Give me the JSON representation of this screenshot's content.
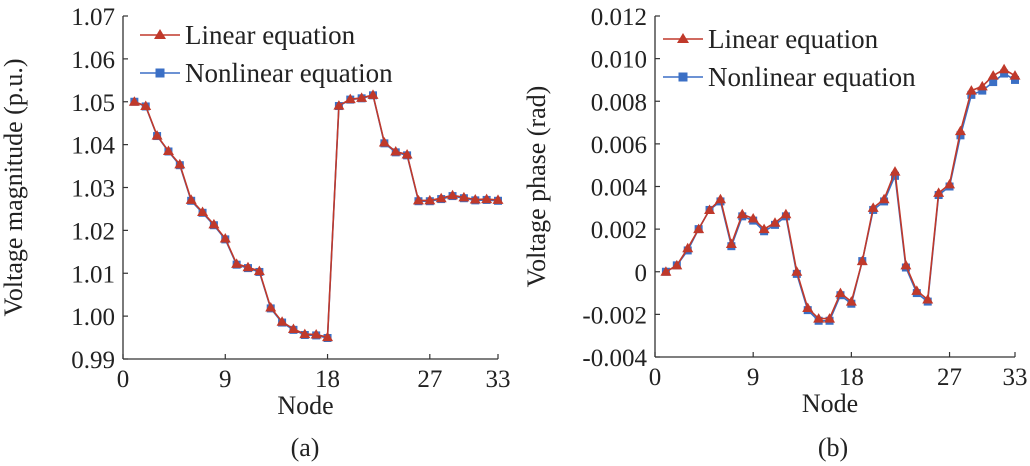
{
  "chart_data": [
    {
      "type": "line",
      "panel_label": "(a)",
      "xlabel": "Node",
      "ylabel": "Voltage  magnitude (p.u.)",
      "xlim": [
        0,
        33
      ],
      "xticks": [
        "0",
        "9",
        "18",
        "27",
        "33"
      ],
      "ylim": [
        0.99,
        1.07
      ],
      "yticks": [
        "0.99",
        "1.00",
        "1.01",
        "1.02",
        "1.03",
        "1.04",
        "1.05",
        "1.06",
        "1.07"
      ],
      "legend_position": "top-right",
      "grid": false,
      "x": [
        1,
        2,
        3,
        4,
        5,
        6,
        7,
        8,
        9,
        10,
        11,
        12,
        13,
        14,
        15,
        16,
        17,
        18,
        19,
        20,
        21,
        22,
        23,
        24,
        25,
        26,
        27,
        28,
        29,
        30,
        31,
        32,
        33
      ],
      "series": [
        {
          "name": "Linear equation",
          "marker": "triangle",
          "color": "#c0392b",
          "values": [
            1.05,
            1.049,
            1.0421,
            1.0385,
            1.0354,
            1.0271,
            1.0243,
            1.0214,
            1.0181,
            1.0122,
            1.0114,
            1.0105,
            1.002,
            0.9987,
            0.997,
            0.9958,
            0.9957,
            0.9951,
            1.0491,
            1.0506,
            1.0509,
            1.0516,
            1.0405,
            1.0384,
            1.0377,
            1.027,
            1.027,
            1.0275,
            1.0282,
            1.0277,
            1.0272,
            1.0273,
            1.0271
          ]
        },
        {
          "name": "Nonlinear equation",
          "marker": "square",
          "color": "#3b6fc5",
          "values": [
            1.05,
            1.0489,
            1.042,
            1.0384,
            1.0352,
            1.0269,
            1.0241,
            1.0212,
            1.0179,
            1.012,
            1.0112,
            1.0103,
            1.0018,
            0.9985,
            0.9968,
            0.9956,
            0.9955,
            0.9949,
            1.049,
            1.0505,
            1.0508,
            1.0515,
            1.0403,
            1.0382,
            1.0375,
            1.0268,
            1.0268,
            1.0273,
            1.028,
            1.0275,
            1.027,
            1.0271,
            1.0269
          ]
        }
      ]
    },
    {
      "type": "line",
      "panel_label": "(b)",
      "xlabel": "Node",
      "ylabel": "Voltage  phase (rad)",
      "xlim": [
        0,
        33
      ],
      "xticks": [
        "0",
        "9",
        "18",
        "27",
        "33"
      ],
      "ylim": [
        -0.004,
        0.012
      ],
      "yticks": [
        "-0.004",
        "-0.002",
        "0",
        "0.002",
        "0.004",
        "0.006",
        "0.008",
        "0.010",
        "0.012"
      ],
      "legend_position": "top-right",
      "grid": false,
      "x": [
        1,
        2,
        3,
        4,
        5,
        6,
        7,
        8,
        9,
        10,
        11,
        12,
        13,
        14,
        15,
        16,
        17,
        18,
        19,
        20,
        21,
        22,
        23,
        24,
        25,
        26,
        27,
        28,
        29,
        30,
        31,
        32,
        33
      ],
      "series": [
        {
          "name": "Linear equation",
          "marker": "triangle",
          "color": "#c0392b",
          "values": [
            0.0,
            0.0003,
            0.0011,
            0.002,
            0.0029,
            0.0034,
            0.0013,
            0.0027,
            0.0025,
            0.002,
            0.0023,
            0.0027,
            0.0,
            -0.0017,
            -0.0022,
            -0.0022,
            -0.001,
            -0.0014,
            0.0005,
            0.003,
            0.0034,
            0.0047,
            0.0003,
            -0.0009,
            -0.0013,
            0.0037,
            0.0041,
            0.0066,
            0.0085,
            0.0087,
            0.0092,
            0.0095,
            0.0092
          ]
        },
        {
          "name": "Nonlinear equation",
          "marker": "square",
          "color": "#3b6fc5",
          "values": [
            0.0,
            0.0003,
            0.001,
            0.002,
            0.0029,
            0.0033,
            0.0012,
            0.0026,
            0.0024,
            0.0019,
            0.0022,
            0.0026,
            -0.0001,
            -0.0018,
            -0.0023,
            -0.0023,
            -0.0011,
            -0.0015,
            0.0005,
            0.0029,
            0.0033,
            0.0045,
            0.0002,
            -0.001,
            -0.0014,
            0.0036,
            0.004,
            0.0064,
            0.0083,
            0.0085,
            0.0089,
            0.0093,
            0.009
          ]
        }
      ]
    }
  ]
}
